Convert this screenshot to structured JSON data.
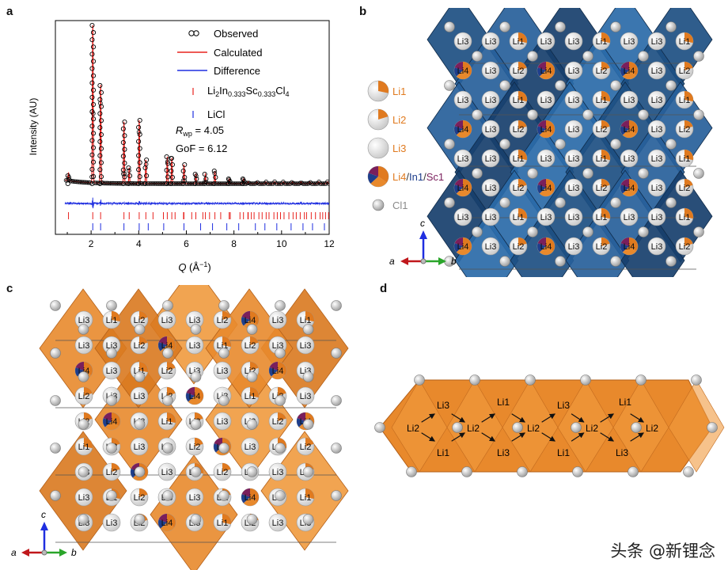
{
  "panels": {
    "a": "a",
    "b": "b",
    "c": "c",
    "d": "d"
  },
  "chart_data": {
    "type": "line",
    "xlabel": "Q (Å⁻¹)",
    "ylabel": "Intensity (AU)",
    "xlim": [
      0.5,
      12
    ],
    "x_ticks": [
      "2",
      "4",
      "6",
      "8",
      "10",
      "12"
    ],
    "x_tick_values": [
      2,
      4,
      6,
      8,
      10,
      12
    ],
    "ylim": [
      0,
      1
    ],
    "legend_placement": "top-right",
    "series": [
      {
        "name": "Observed",
        "style": "open circles",
        "color": "#000000"
      },
      {
        "name": "Calculated",
        "style": "line",
        "color": "#e8231f"
      },
      {
        "name": "Difference",
        "style": "line",
        "color": "#1f2ee0"
      },
      {
        "name": "Li2In0.333Sc0.333Cl4",
        "style": "tick marks",
        "color": "#e8231f"
      },
      {
        "name": "LiCl",
        "style": "tick marks",
        "color": "#1f2ee0"
      }
    ],
    "peaks": [
      {
        "x": 1.05,
        "y": 0.05
      },
      {
        "x": 2.07,
        "y": 1.0
      },
      {
        "x": 2.4,
        "y": 0.62
      },
      {
        "x": 3.38,
        "y": 0.39
      },
      {
        "x": 3.6,
        "y": 0.1
      },
      {
        "x": 4.02,
        "y": 0.4
      },
      {
        "x": 4.3,
        "y": 0.15
      },
      {
        "x": 5.2,
        "y": 0.17
      },
      {
        "x": 5.39,
        "y": 0.16
      },
      {
        "x": 5.9,
        "y": 0.12
      },
      {
        "x": 6.4,
        "y": 0.06
      },
      {
        "x": 6.8,
        "y": 0.06
      },
      {
        "x": 7.2,
        "y": 0.08
      },
      {
        "x": 7.8,
        "y": 0.03
      },
      {
        "x": 8.4,
        "y": 0.03
      }
    ],
    "baseline": 0.02,
    "annotations": {
      "rwp_label": "R",
      "rwp_sub": "wp",
      "rwp_value": " = 4.05",
      "gof": "GoF = 6.12"
    },
    "legend_formula": {
      "parts": [
        {
          "t": "Li",
          "sub": false
        },
        {
          "t": "2",
          "sub": true
        },
        {
          "t": "In",
          "sub": false
        },
        {
          "t": "0.333",
          "sub": true
        },
        {
          "t": "Sc",
          "sub": false
        },
        {
          "t": "0.333",
          "sub": true
        },
        {
          "t": "Cl",
          "sub": false
        },
        {
          "t": "4",
          "sub": true
        }
      ]
    }
  },
  "structure_legend": [
    {
      "label": "Li1",
      "type": "li1",
      "color": "#e07a1f"
    },
    {
      "label": "Li2",
      "type": "li2",
      "color": "#e07a1f"
    },
    {
      "label": "Li3",
      "type": "li3",
      "color": "#e07a1f"
    },
    {
      "label_parts": [
        {
          "t": "Li4",
          "color": "#e07a1f"
        },
        {
          "t": "/",
          "color": "#333333"
        },
        {
          "t": "In1",
          "color": "#1e3e8c"
        },
        {
          "t": "/",
          "color": "#333333"
        },
        {
          "t": "Sc1",
          "color": "#7a1f5c"
        }
      ],
      "type": "li4"
    },
    {
      "label": "Cl1",
      "type": "cl",
      "color": "#8a8a8a"
    }
  ],
  "axes_b": {
    "c": "c",
    "a": "a",
    "b": "b"
  },
  "axes_c": {
    "c": "c",
    "a": "a",
    "b": "b"
  },
  "atom_labels": {
    "li1": "Li1",
    "li2": "Li2",
    "li3": "Li3",
    "li4": "Li4"
  },
  "colors": {
    "blue_poly": "#1d4f82",
    "orange_poly": "#e8892c",
    "red": "#e8231f",
    "blue": "#1f2ee0"
  },
  "watermark": "头条 @新锂念"
}
